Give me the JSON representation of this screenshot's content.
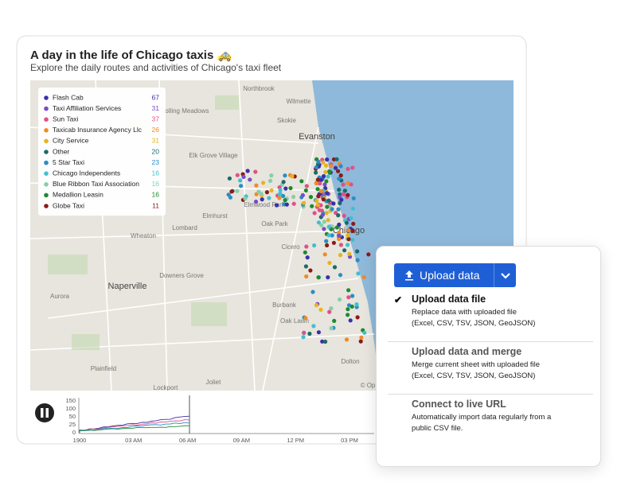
{
  "header": {
    "title": "A day in the life of Chicago taxis 🚕",
    "subtitle": "Explore the daily routes and activities of Chicago's taxi fleet"
  },
  "legend": [
    {
      "name": "Flash Cab",
      "count": 67,
      "color": "#3b2fa8"
    },
    {
      "name": "Taxi Affiliation Services",
      "count": 31,
      "color": "#7a4cc4"
    },
    {
      "name": "Sun Taxi",
      "count": 37,
      "color": "#e0508a"
    },
    {
      "name": "Taxicab Insurance Agency Llc",
      "count": 26,
      "color": "#ef8a2a"
    },
    {
      "name": "City Service",
      "count": 31,
      "color": "#e6b41e"
    },
    {
      "name": "Other",
      "count": 20,
      "color": "#1b6b6b"
    },
    {
      "name": "5 Star Taxi",
      "count": 23,
      "color": "#2a8dc8"
    },
    {
      "name": "Chicago Independents",
      "count": 16,
      "color": "#40c0cf"
    },
    {
      "name": "Blue Ribbon Taxi Association",
      "count": 16,
      "color": "#86cfa9"
    },
    {
      "name": "Medallion Leasin",
      "count": 16,
      "color": "#1e8a2e"
    },
    {
      "name": "Globe Taxi",
      "count": 11,
      "color": "#8b1a1a"
    }
  ],
  "map_labels": [
    "Northbrook",
    "Wilmette",
    "Rolling Meadows",
    "Skokie",
    "Evanston",
    "Elk Grove Village",
    "Elmwood Park",
    "Elmhurst",
    "Oak Park",
    "Lombard",
    "Wheaton",
    "Cicero",
    "Chicago",
    "Downers Grove",
    "Naperville",
    "Aurora",
    "Burbank",
    "Oak Lawn",
    "Dolton",
    "Plainfield",
    "Joliet",
    "Lockport",
    "© Op"
  ],
  "timeline": {
    "yticks": [
      "150",
      "100",
      "50",
      "25",
      "0"
    ],
    "xticks": [
      "1900",
      "03 AM",
      "06 AM",
      "09 AM",
      "12 PM",
      "03 PM"
    ]
  },
  "upload": {
    "button": "Upload data",
    "options": [
      {
        "title": "Upload data file",
        "lines": [
          "Replace data with uploaded file",
          "(Excel, CSV, TSV, JSON, GeoJSON)"
        ]
      },
      {
        "title": "Upload data and merge",
        "lines": [
          "Merge current sheet with uploaded file",
          "(Excel, CSV, TSV, JSON, GeoJSON)"
        ]
      },
      {
        "title": "Connect to live URL",
        "lines": [
          "Automatically import data regularly from a",
          "public CSV file."
        ]
      }
    ]
  }
}
